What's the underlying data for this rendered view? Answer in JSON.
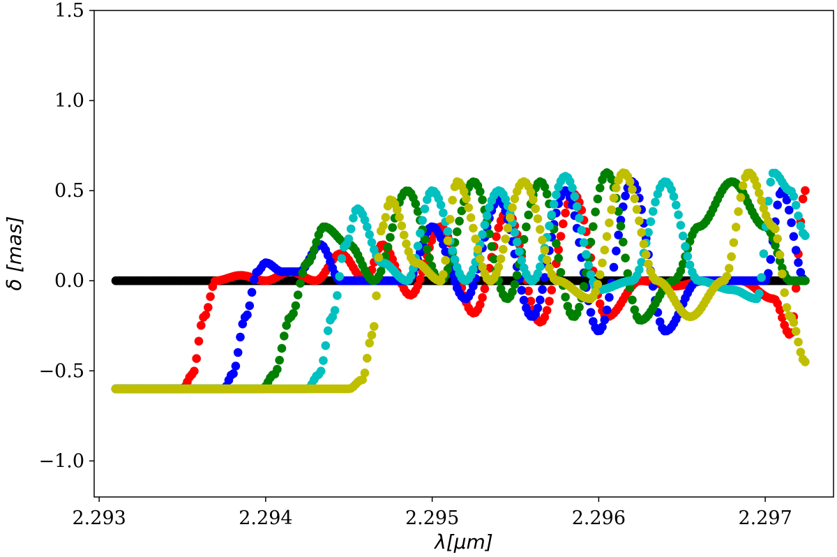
{
  "chart_data": {
    "type": "scatter",
    "title": "",
    "xlabel": "λ[μm]",
    "ylabel": "δ [mas]",
    "xlim": [
      2.29297,
      2.29741
    ],
    "ylim": [
      -1.2,
      1.5
    ],
    "xticks": [
      2.293,
      2.294,
      2.295,
      2.296,
      2.297
    ],
    "xtick_labels": [
      "2.293",
      "2.294",
      "2.295",
      "2.296",
      "2.297"
    ],
    "yticks": [
      1.5,
      1.0,
      0.5,
      0.0,
      -0.5,
      -1.0
    ],
    "ytick_labels": [
      "1.5",
      "1.0",
      "0.5",
      "0.0",
      "−0.5",
      "−1.0"
    ],
    "grid": false,
    "series": [
      {
        "name": "reference",
        "color": "#000000",
        "baseline": 0.0,
        "start": 2.2931,
        "end": 2.29724,
        "keypoints": [
          [
            2.2931,
            0.0
          ],
          [
            2.29724,
            0.0
          ]
        ]
      },
      {
        "name": "red",
        "color": "#ff0000",
        "baseline": -0.6,
        "start": 2.2931,
        "end": 2.29724,
        "keypoints": [
          [
            2.2931,
            -0.6
          ],
          [
            2.2935,
            -0.6
          ],
          [
            2.29356,
            -0.52
          ],
          [
            2.29363,
            -0.2
          ],
          [
            2.2937,
            0.0
          ],
          [
            2.29385,
            0.03
          ],
          [
            2.294,
            0.0
          ],
          [
            2.29415,
            0.05
          ],
          [
            2.2943,
            0.0
          ],
          [
            2.29445,
            0.15
          ],
          [
            2.2946,
            0.0
          ],
          [
            2.2947,
            0.2
          ],
          [
            2.29487,
            -0.08
          ],
          [
            2.29505,
            0.3
          ],
          [
            2.29525,
            -0.18
          ],
          [
            2.29545,
            0.38
          ],
          [
            2.29565,
            -0.23
          ],
          [
            2.29585,
            0.48
          ],
          [
            2.29605,
            -0.2
          ],
          [
            2.29625,
            0.0
          ],
          [
            2.29645,
            -0.03
          ],
          [
            2.29665,
            0.0
          ],
          [
            2.29685,
            0.0
          ],
          [
            2.29705,
            -0.1
          ],
          [
            2.29715,
            -0.3
          ],
          [
            2.29724,
            0.5
          ]
        ]
      },
      {
        "name": "blue",
        "color": "#0000ff",
        "baseline": -0.6,
        "start": 2.2931,
        "end": 2.29724,
        "keypoints": [
          [
            2.2931,
            -0.6
          ],
          [
            2.29375,
            -0.6
          ],
          [
            2.2938,
            -0.52
          ],
          [
            2.29388,
            -0.2
          ],
          [
            2.29395,
            0.05
          ],
          [
            2.294,
            0.1
          ],
          [
            2.2941,
            0.05
          ],
          [
            2.2942,
            0.05
          ],
          [
            2.29433,
            0.2
          ],
          [
            2.29445,
            0.0
          ],
          [
            2.2946,
            0.0
          ],
          [
            2.29485,
            0.0
          ],
          [
            2.295,
            0.3
          ],
          [
            2.2952,
            -0.1
          ],
          [
            2.2954,
            0.45
          ],
          [
            2.2956,
            -0.2
          ],
          [
            2.2958,
            0.5
          ],
          [
            2.296,
            -0.28
          ],
          [
            2.2962,
            0.55
          ],
          [
            2.2964,
            -0.28
          ],
          [
            2.2966,
            0.0
          ],
          [
            2.2968,
            0.0
          ],
          [
            2.297,
            0.0
          ],
          [
            2.2971,
            0.5
          ],
          [
            2.29724,
            0.0
          ]
        ]
      },
      {
        "name": "green",
        "color": "#008000",
        "baseline": -0.6,
        "start": 2.2931,
        "end": 2.29724,
        "keypoints": [
          [
            2.2931,
            -0.6
          ],
          [
            2.29398,
            -0.6
          ],
          [
            2.29405,
            -0.52
          ],
          [
            2.29415,
            -0.2
          ],
          [
            2.29425,
            0.1
          ],
          [
            2.29435,
            0.3
          ],
          [
            2.2945,
            0.2
          ],
          [
            2.29465,
            0.0
          ],
          [
            2.29485,
            0.5
          ],
          [
            2.29505,
            0.0
          ],
          [
            2.29525,
            0.55
          ],
          [
            2.29545,
            -0.1
          ],
          [
            2.29565,
            0.55
          ],
          [
            2.29585,
            -0.2
          ],
          [
            2.29605,
            0.6
          ],
          [
            2.29625,
            -0.22
          ],
          [
            2.29645,
            0.0
          ],
          [
            2.2966,
            0.3
          ],
          [
            2.2968,
            0.55
          ],
          [
            2.297,
            0.3
          ],
          [
            2.29715,
            0.0
          ],
          [
            2.29724,
            0.0
          ]
        ]
      },
      {
        "name": "cyan",
        "color": "#00c0c0",
        "baseline": -0.6,
        "start": 2.2931,
        "end": 2.29724,
        "keypoints": [
          [
            2.2931,
            -0.6
          ],
          [
            2.29425,
            -0.6
          ],
          [
            2.29432,
            -0.52
          ],
          [
            2.2944,
            -0.2
          ],
          [
            2.29448,
            0.2
          ],
          [
            2.29455,
            0.4
          ],
          [
            2.2947,
            0.1
          ],
          [
            2.29485,
            0.0
          ],
          [
            2.295,
            0.5
          ],
          [
            2.2952,
            0.0
          ],
          [
            2.2954,
            0.5
          ],
          [
            2.2956,
            0.0
          ],
          [
            2.2958,
            0.58
          ],
          [
            2.296,
            -0.05
          ],
          [
            2.2962,
            0.0
          ],
          [
            2.2964,
            0.55
          ],
          [
            2.2966,
            0.0
          ],
          [
            2.2968,
            -0.05
          ],
          [
            2.29695,
            -0.1
          ],
          [
            2.29705,
            0.6
          ],
          [
            2.29715,
            0.5
          ],
          [
            2.29724,
            0.25
          ]
        ]
      },
      {
        "name": "olive",
        "color": "#bfbf00",
        "baseline": -0.6,
        "start": 2.2931,
        "end": 2.29724,
        "keypoints": [
          [
            2.2931,
            -0.6
          ],
          [
            2.2945,
            -0.6
          ],
          [
            2.29458,
            -0.55
          ],
          [
            2.29464,
            -0.3
          ],
          [
            2.2947,
            0.3
          ],
          [
            2.29475,
            0.45
          ],
          [
            2.2949,
            0.1
          ],
          [
            2.29505,
            0.0
          ],
          [
            2.29515,
            0.55
          ],
          [
            2.29535,
            0.0
          ],
          [
            2.29555,
            0.55
          ],
          [
            2.29575,
            0.0
          ],
          [
            2.29595,
            -0.1
          ],
          [
            2.29615,
            0.6
          ],
          [
            2.29635,
            0.0
          ],
          [
            2.29655,
            -0.2
          ],
          [
            2.29675,
            0.0
          ],
          [
            2.2969,
            0.6
          ],
          [
            2.29705,
            0.3
          ],
          [
            2.29715,
            -0.2
          ],
          [
            2.29724,
            -0.45
          ]
        ]
      }
    ]
  }
}
